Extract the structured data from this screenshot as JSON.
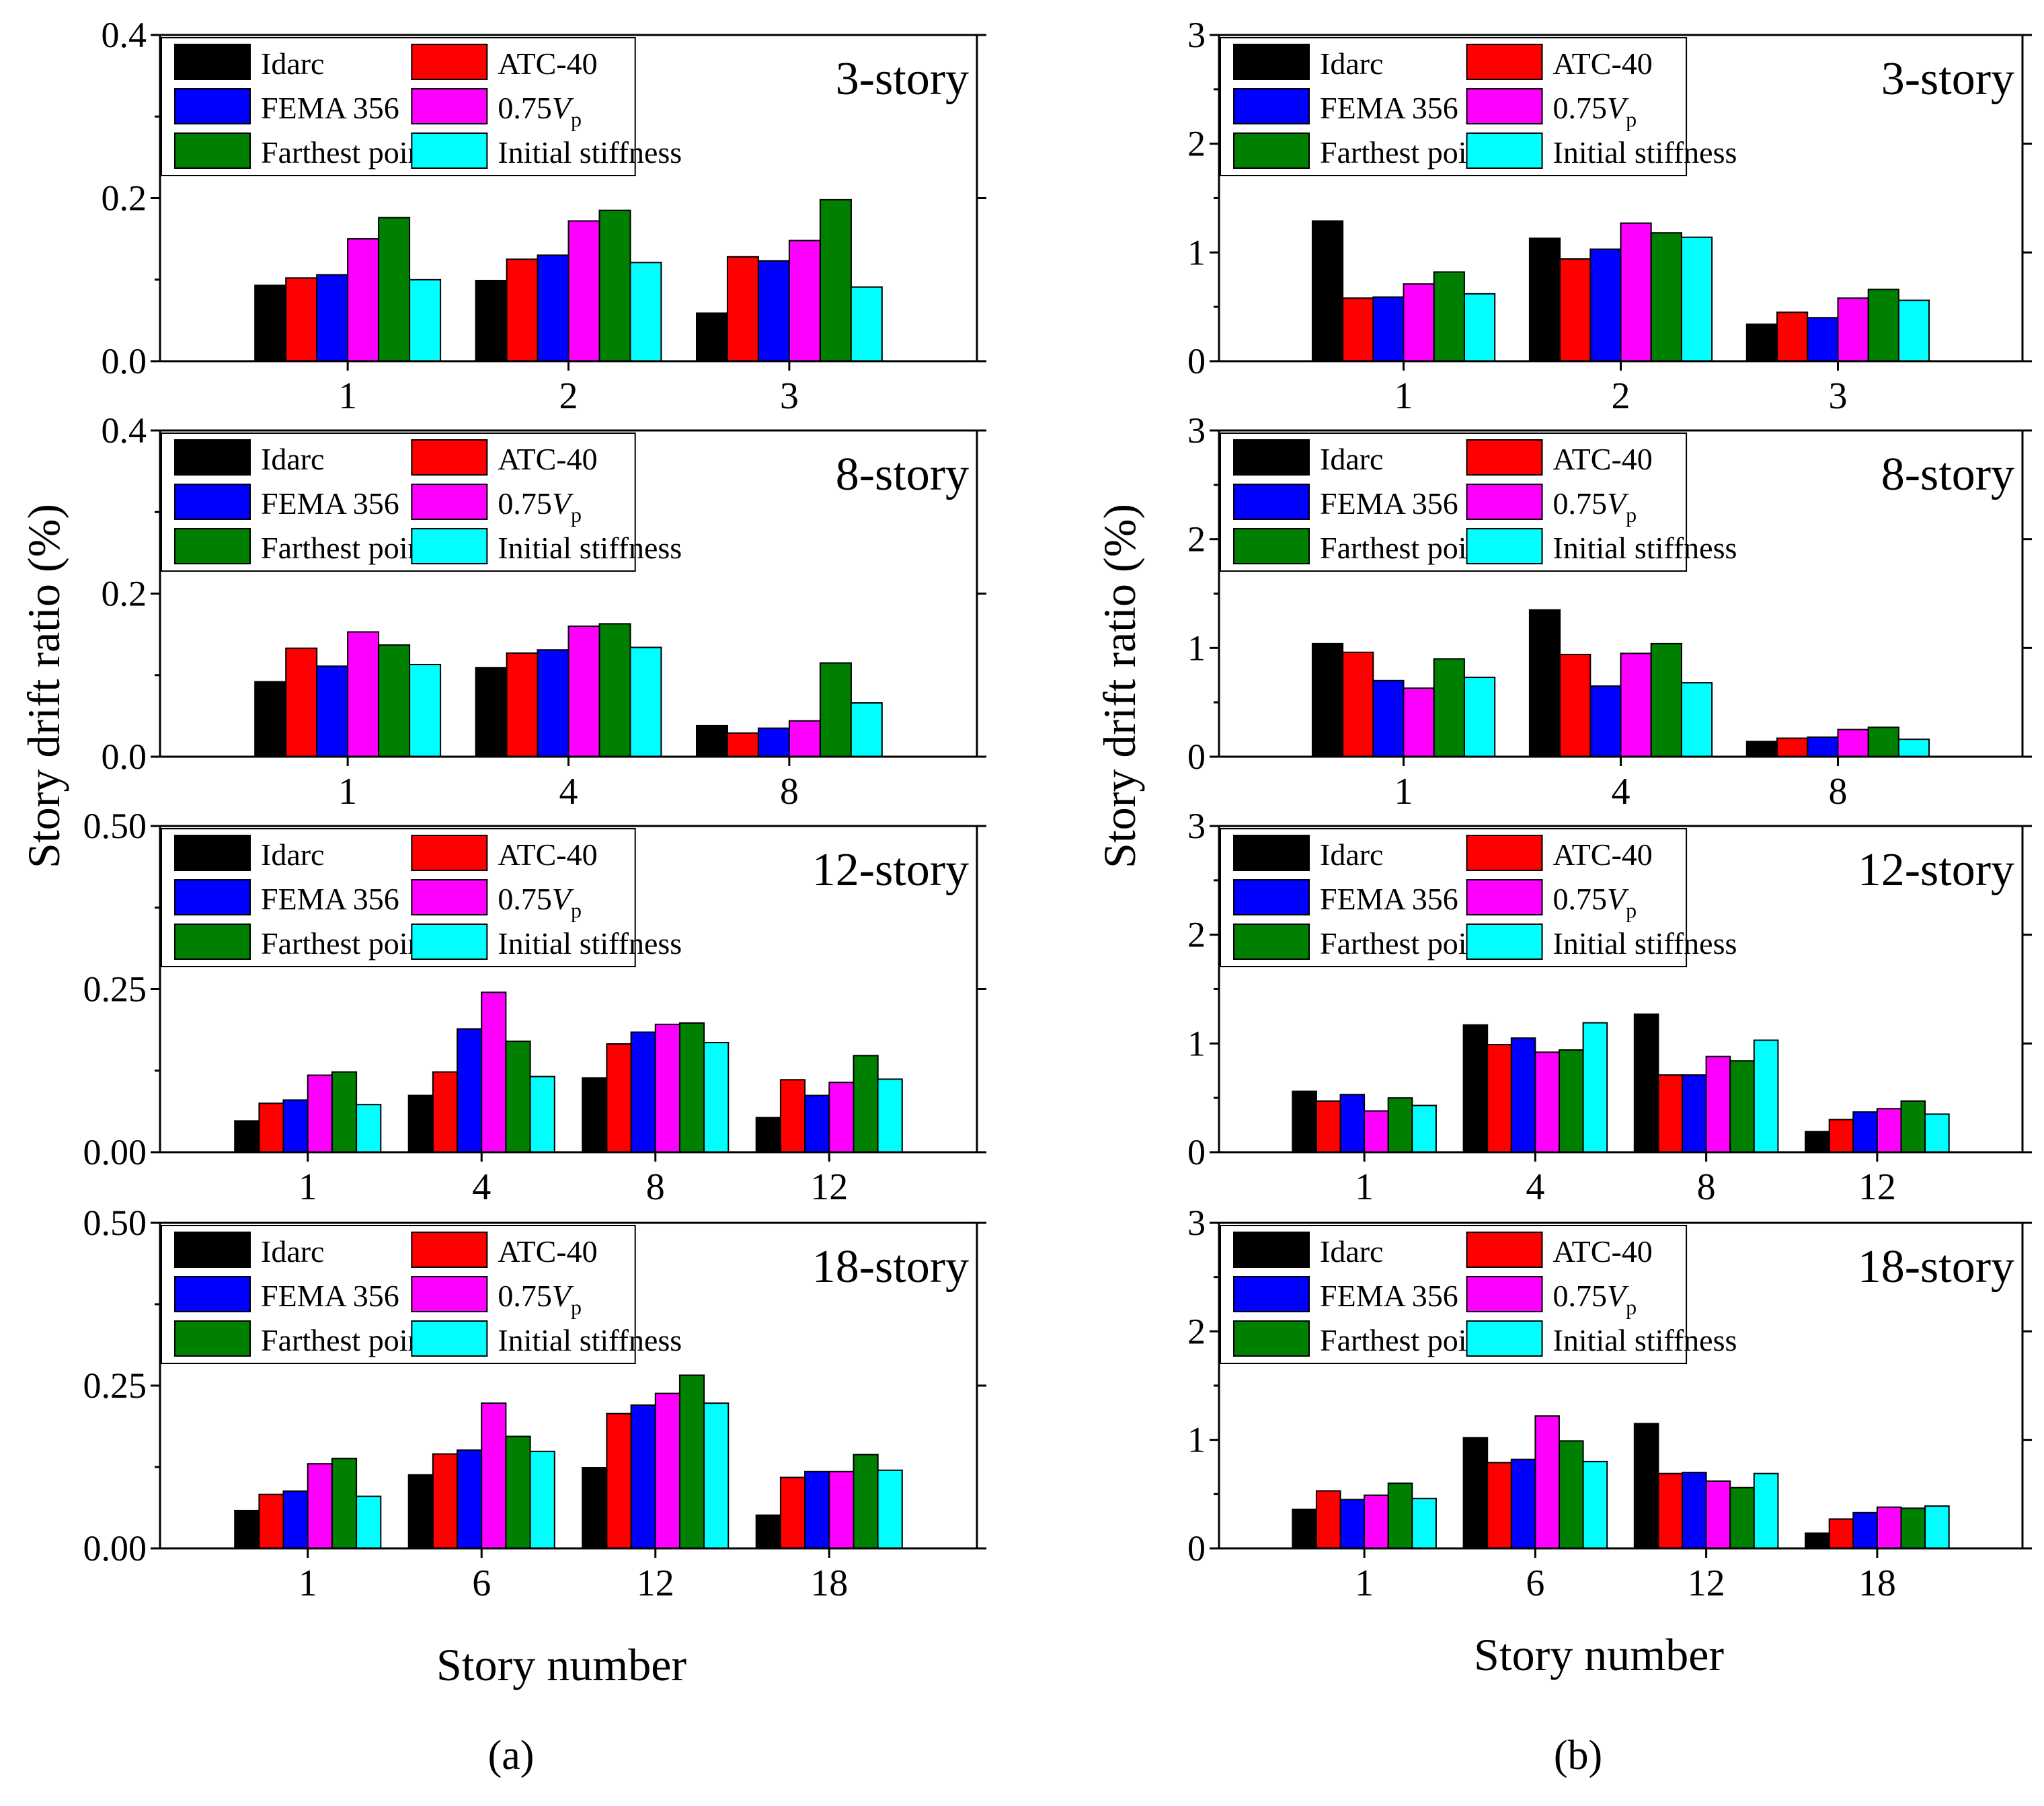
{
  "figure": {
    "ylabel": "Story drift ratio (%)",
    "xlabel": "Story number",
    "column_labels": [
      "(a)",
      "(b)"
    ],
    "legend": [
      "Idarc",
      "ATC-40",
      "FEMA 356",
      "0.75V",
      "Farthest point",
      "Initial stiffness"
    ],
    "legend_subscript": "p",
    "series_colors": [
      "#000000",
      "#ff0000",
      "#0000ff",
      "#ff00ff",
      "#008000",
      "#00ffff"
    ]
  },
  "chart_data": [
    {
      "type": "bar",
      "column": "a",
      "title": "3-story",
      "categories": [
        "1",
        "2",
        "3"
      ],
      "ylim": [
        0,
        0.4
      ],
      "yticks": [
        "0.0",
        "0.2",
        "0.4"
      ],
      "series": [
        {
          "name": "Idarc",
          "values": [
            0.093,
            0.099,
            0.059
          ]
        },
        {
          "name": "ATC-40",
          "values": [
            0.102,
            0.125,
            0.128
          ]
        },
        {
          "name": "FEMA 356",
          "values": [
            0.106,
            0.13,
            0.123
          ]
        },
        {
          "name": "0.75Vp",
          "values": [
            0.15,
            0.172,
            0.148
          ]
        },
        {
          "name": "Farthest point",
          "values": [
            0.176,
            0.185,
            0.198
          ]
        },
        {
          "name": "Initial stiffness",
          "values": [
            0.1,
            0.121,
            0.091
          ]
        }
      ]
    },
    {
      "type": "bar",
      "column": "b",
      "title": "3-story",
      "categories": [
        "1",
        "2",
        "3"
      ],
      "ylim": [
        0,
        3
      ],
      "yticks": [
        "0",
        "1",
        "2",
        "3"
      ],
      "series": [
        {
          "name": "Idarc",
          "values": [
            1.29,
            1.13,
            0.34
          ]
        },
        {
          "name": "ATC-40",
          "values": [
            0.58,
            0.94,
            0.45
          ]
        },
        {
          "name": "FEMA 356",
          "values": [
            0.59,
            1.03,
            0.4
          ]
        },
        {
          "name": "0.75Vp",
          "values": [
            0.71,
            1.27,
            0.58
          ]
        },
        {
          "name": "Farthest point",
          "values": [
            0.82,
            1.18,
            0.66
          ]
        },
        {
          "name": "Initial stiffness",
          "values": [
            0.62,
            1.14,
            0.56
          ]
        }
      ]
    },
    {
      "type": "bar",
      "column": "a",
      "title": "8-story",
      "categories": [
        "1",
        "4",
        "8"
      ],
      "ylim": [
        0,
        0.4
      ],
      "yticks": [
        "0.0",
        "0.2",
        "0.4"
      ],
      "series": [
        {
          "name": "Idarc",
          "values": [
            0.092,
            0.109,
            0.038
          ]
        },
        {
          "name": "ATC-40",
          "values": [
            0.133,
            0.127,
            0.029
          ]
        },
        {
          "name": "FEMA 356",
          "values": [
            0.111,
            0.131,
            0.035
          ]
        },
        {
          "name": "0.75Vp",
          "values": [
            0.153,
            0.16,
            0.044
          ]
        },
        {
          "name": "Farthest point",
          "values": [
            0.137,
            0.163,
            0.115
          ]
        },
        {
          "name": "Initial stiffness",
          "values": [
            0.113,
            0.134,
            0.066
          ]
        }
      ]
    },
    {
      "type": "bar",
      "column": "b",
      "title": "8-story",
      "categories": [
        "1",
        "4",
        "8"
      ],
      "ylim": [
        0,
        3
      ],
      "yticks": [
        "0",
        "1",
        "2",
        "3"
      ],
      "series": [
        {
          "name": "Idarc",
          "values": [
            1.04,
            1.35,
            0.14
          ]
        },
        {
          "name": "ATC-40",
          "values": [
            0.96,
            0.94,
            0.17
          ]
        },
        {
          "name": "FEMA 356",
          "values": [
            0.7,
            0.65,
            0.18
          ]
        },
        {
          "name": "0.75Vp",
          "values": [
            0.63,
            0.95,
            0.25
          ]
        },
        {
          "name": "Farthest point",
          "values": [
            0.9,
            1.04,
            0.27
          ]
        },
        {
          "name": "Initial stiffness",
          "values": [
            0.73,
            0.68,
            0.16
          ]
        }
      ]
    },
    {
      "type": "bar",
      "column": "a",
      "title": "12-story",
      "categories": [
        "1",
        "4",
        "8",
        "12"
      ],
      "ylim": [
        0,
        0.5
      ],
      "yticks": [
        "0.00",
        "0.25",
        "0.50"
      ],
      "series": [
        {
          "name": "Idarc",
          "values": [
            0.048,
            0.087,
            0.114,
            0.053
          ]
        },
        {
          "name": "ATC-40",
          "values": [
            0.075,
            0.123,
            0.166,
            0.111
          ]
        },
        {
          "name": "FEMA 356",
          "values": [
            0.08,
            0.189,
            0.184,
            0.087
          ]
        },
        {
          "name": "0.75Vp",
          "values": [
            0.118,
            0.245,
            0.196,
            0.107
          ]
        },
        {
          "name": "Farthest point",
          "values": [
            0.123,
            0.17,
            0.198,
            0.148
          ]
        },
        {
          "name": "Initial stiffness",
          "values": [
            0.073,
            0.116,
            0.168,
            0.112
          ]
        }
      ]
    },
    {
      "type": "bar",
      "column": "b",
      "title": "12-story",
      "categories": [
        "1",
        "4",
        "8",
        "12"
      ],
      "ylim": [
        0,
        3
      ],
      "yticks": [
        "0",
        "1",
        "2",
        "3"
      ],
      "series": [
        {
          "name": "Idarc",
          "values": [
            0.56,
            1.17,
            1.27,
            0.19
          ]
        },
        {
          "name": "ATC-40",
          "values": [
            0.47,
            0.99,
            0.71,
            0.3
          ]
        },
        {
          "name": "FEMA 356",
          "values": [
            0.53,
            1.05,
            0.71,
            0.37
          ]
        },
        {
          "name": "0.75Vp",
          "values": [
            0.38,
            0.92,
            0.88,
            0.4
          ]
        },
        {
          "name": "Farthest point",
          "values": [
            0.5,
            0.94,
            0.84,
            0.47
          ]
        },
        {
          "name": "Initial stiffness",
          "values": [
            0.43,
            1.19,
            1.03,
            0.35
          ]
        }
      ]
    },
    {
      "type": "bar",
      "column": "a",
      "title": "18-story",
      "categories": [
        "1",
        "6",
        "12",
        "18"
      ],
      "ylim": [
        0,
        0.5
      ],
      "yticks": [
        "0.00",
        "0.25",
        "0.50"
      ],
      "series": [
        {
          "name": "Idarc",
          "values": [
            0.058,
            0.113,
            0.124,
            0.051
          ]
        },
        {
          "name": "ATC-40",
          "values": [
            0.083,
            0.145,
            0.207,
            0.109
          ]
        },
        {
          "name": "FEMA 356",
          "values": [
            0.088,
            0.151,
            0.22,
            0.118
          ]
        },
        {
          "name": "0.75Vp",
          "values": [
            0.13,
            0.223,
            0.238,
            0.118
          ]
        },
        {
          "name": "Farthest point",
          "values": [
            0.138,
            0.172,
            0.266,
            0.144
          ]
        },
        {
          "name": "Initial stiffness",
          "values": [
            0.08,
            0.149,
            0.223,
            0.12
          ]
        }
      ]
    },
    {
      "type": "bar",
      "column": "b",
      "title": "18-story",
      "categories": [
        "1",
        "6",
        "12",
        "18"
      ],
      "ylim": [
        0,
        3
      ],
      "yticks": [
        "0",
        "1",
        "2",
        "3"
      ],
      "series": [
        {
          "name": "Idarc",
          "values": [
            0.36,
            1.02,
            1.15,
            0.14
          ]
        },
        {
          "name": "ATC-40",
          "values": [
            0.53,
            0.79,
            0.69,
            0.27
          ]
        },
        {
          "name": "FEMA 356",
          "values": [
            0.45,
            0.82,
            0.7,
            0.33
          ]
        },
        {
          "name": "0.75Vp",
          "values": [
            0.49,
            1.22,
            0.62,
            0.38
          ]
        },
        {
          "name": "Farthest point",
          "values": [
            0.6,
            0.99,
            0.56,
            0.37
          ]
        },
        {
          "name": "Initial stiffness",
          "values": [
            0.46,
            0.8,
            0.69,
            0.39
          ]
        }
      ]
    }
  ]
}
